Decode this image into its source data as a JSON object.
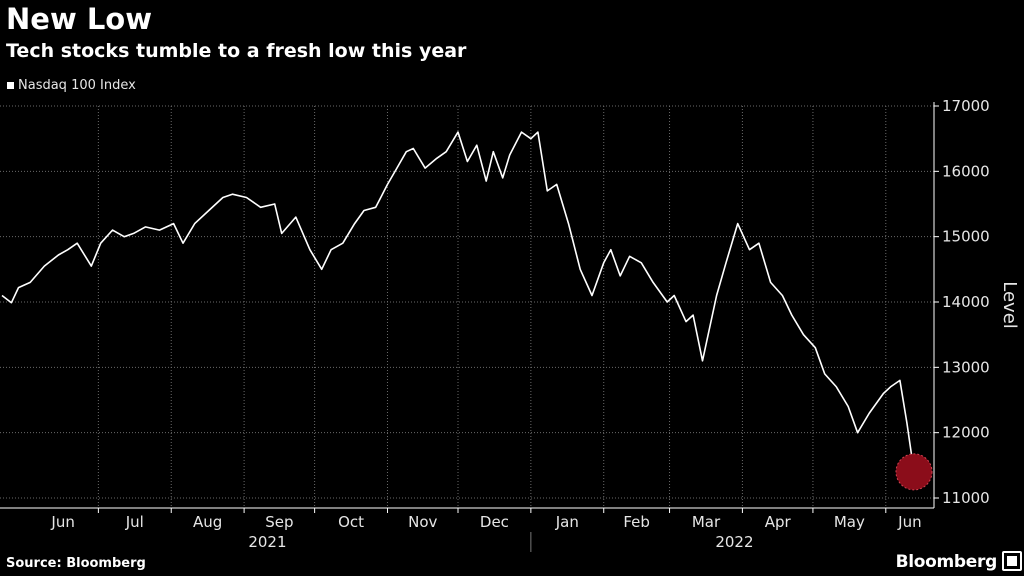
{
  "chart_data": {
    "type": "line",
    "title": "New Low",
    "subtitle": "Tech stocks tumble to a fresh low this year",
    "ylabel": "Level",
    "ylim": [
      11000,
      17000
    ],
    "yticks": [
      11000,
      12000,
      13000,
      14000,
      15000,
      16000,
      17000
    ],
    "ytick_labels": [
      "11000",
      "12000",
      "13000",
      "14000",
      "15000",
      "16000",
      "17000"
    ],
    "grid": true,
    "legend_position": "top-left",
    "x_month_labels": [
      "Jun",
      "Jul",
      "Aug",
      "Sep",
      "Oct",
      "Nov",
      "Dec",
      "Jan",
      "Feb",
      "Mar",
      "Apr",
      "May",
      "Jun"
    ],
    "x_year_labels": [
      "2021",
      "2022"
    ],
    "highlight": {
      "date": "2022-06-13",
      "value": 11400,
      "color": "#8b0d1a"
    },
    "series": [
      {
        "name": "Nasdaq 100 Index",
        "color": "#ffffff",
        "points": [
          [
            "2021-05-21",
            14100
          ],
          [
            "2021-05-25",
            13990
          ],
          [
            "2021-05-28",
            14220
          ],
          [
            "2021-06-02",
            14300
          ],
          [
            "2021-06-08",
            14550
          ],
          [
            "2021-06-14",
            14720
          ],
          [
            "2021-06-18",
            14800
          ],
          [
            "2021-06-22",
            14900
          ],
          [
            "2021-06-28",
            14550
          ],
          [
            "2021-07-02",
            14900
          ],
          [
            "2021-07-07",
            15100
          ],
          [
            "2021-07-12",
            15000
          ],
          [
            "2021-07-16",
            15050
          ],
          [
            "2021-07-21",
            15150
          ],
          [
            "2021-07-27",
            15100
          ],
          [
            "2021-08-02",
            15200
          ],
          [
            "2021-08-06",
            14900
          ],
          [
            "2021-08-11",
            15200
          ],
          [
            "2021-08-17",
            15400
          ],
          [
            "2021-08-23",
            15600
          ],
          [
            "2021-08-27",
            15650
          ],
          [
            "2021-09-02",
            15600
          ],
          [
            "2021-09-08",
            15450
          ],
          [
            "2021-09-14",
            15500
          ],
          [
            "2021-09-17",
            15050
          ],
          [
            "2021-09-23",
            15300
          ],
          [
            "2021-09-29",
            14800
          ],
          [
            "2021-10-04",
            14500
          ],
          [
            "2021-10-08",
            14800
          ],
          [
            "2021-10-13",
            14900
          ],
          [
            "2021-10-18",
            15200
          ],
          [
            "2021-10-22",
            15400
          ],
          [
            "2021-10-27",
            15450
          ],
          [
            "2021-11-01",
            15800
          ],
          [
            "2021-11-05",
            16050
          ],
          [
            "2021-11-09",
            16300
          ],
          [
            "2021-11-12",
            16350
          ],
          [
            "2021-11-17",
            16050
          ],
          [
            "2021-11-22",
            16200
          ],
          [
            "2021-11-26",
            16300
          ],
          [
            "2021-12-01",
            16600
          ],
          [
            "2021-12-05",
            16150
          ],
          [
            "2021-12-09",
            16400
          ],
          [
            "2021-12-13",
            15850
          ],
          [
            "2021-12-16",
            16300
          ],
          [
            "2021-12-20",
            15900
          ],
          [
            "2021-12-23",
            16250
          ],
          [
            "2021-12-28",
            16600
          ],
          [
            "2022-01-01",
            16500
          ],
          [
            "2022-01-04",
            16600
          ],
          [
            "2022-01-08",
            15700
          ],
          [
            "2022-01-12",
            15800
          ],
          [
            "2022-01-17",
            15200
          ],
          [
            "2022-01-22",
            14500
          ],
          [
            "2022-01-27",
            14100
          ],
          [
            "2022-02-01",
            14600
          ],
          [
            "2022-02-04",
            14800
          ],
          [
            "2022-02-08",
            14400
          ],
          [
            "2022-02-12",
            14700
          ],
          [
            "2022-02-17",
            14600
          ],
          [
            "2022-02-22",
            14300
          ],
          [
            "2022-02-28",
            14000
          ],
          [
            "2022-03-03",
            14100
          ],
          [
            "2022-03-08",
            13700
          ],
          [
            "2022-03-11",
            13800
          ],
          [
            "2022-03-15",
            13100
          ],
          [
            "2022-03-21",
            14100
          ],
          [
            "2022-03-25",
            14600
          ],
          [
            "2022-03-30",
            15200
          ],
          [
            "2022-04-04",
            14800
          ],
          [
            "2022-04-08",
            14900
          ],
          [
            "2022-04-13",
            14300
          ],
          [
            "2022-04-18",
            14100
          ],
          [
            "2022-04-22",
            13800
          ],
          [
            "2022-04-27",
            13500
          ],
          [
            "2022-05-02",
            13300
          ],
          [
            "2022-05-06",
            12900
          ],
          [
            "2022-05-11",
            12700
          ],
          [
            "2022-05-16",
            12400
          ],
          [
            "2022-05-20",
            12000
          ],
          [
            "2022-05-25",
            12300
          ],
          [
            "2022-05-31",
            12600
          ],
          [
            "2022-06-03",
            12700
          ],
          [
            "2022-06-07",
            12800
          ],
          [
            "2022-06-10",
            12150
          ],
          [
            "2022-06-13",
            11400
          ]
        ]
      }
    ]
  },
  "source_label": "Source: Bloomberg",
  "brand_label": "Bloomberg"
}
